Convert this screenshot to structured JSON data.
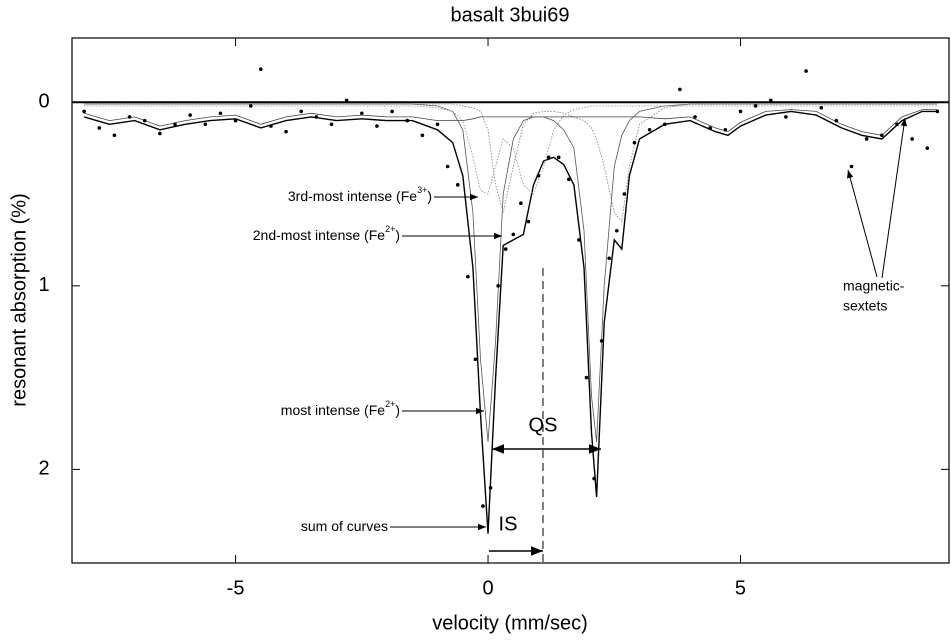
{
  "chart_data": {
    "type": "line",
    "title": "basalt 3bui69",
    "x_label": "velocity (mm/sec)",
    "y_label": "resonant absorption (%)",
    "xlim": [
      -8.24,
      9.13
    ],
    "ylim": [
      2.51,
      -0.35
    ],
    "xticks": [
      -5,
      0,
      5
    ],
    "yticks": [
      0,
      1,
      2
    ],
    "baseline": 0,
    "x": [
      -8,
      -7.5,
      -7,
      -6.5,
      -6,
      -5.5,
      -5,
      -4.5,
      -4,
      -3.5,
      -3,
      -2.5,
      -2,
      -1.5,
      -1,
      -0.7,
      -0.5,
      -0.3,
      -0.15,
      0,
      0.15,
      0.3,
      0.5,
      0.7,
      0.9,
      1.1,
      1.3,
      1.5,
      1.7,
      1.9,
      2.05,
      2.15,
      2.3,
      2.5,
      2.65,
      2.8,
      3,
      3.5,
      4,
      4.5,
      4.75,
      5,
      5.5,
      6,
      6.5,
      7,
      7.4,
      7.8,
      8.2,
      8.6,
      8.9
    ],
    "series": [
      {
        "color": "#000000",
        "style": "solid",
        "width": 1.4,
        "values": [
          0.08,
          0.12,
          0.1,
          0.15,
          0.12,
          0.1,
          0.09,
          0.14,
          0.1,
          0.08,
          0.1,
          0.09,
          0.1,
          0.1,
          0.15,
          0.22,
          0.4,
          0.9,
          1.7,
          2.35,
          1.5,
          0.78,
          0.75,
          0.72,
          0.45,
          0.32,
          0.3,
          0.34,
          0.45,
          0.9,
          1.8,
          2.15,
          1.2,
          0.75,
          0.8,
          0.4,
          0.2,
          0.12,
          0.1,
          0.16,
          0.18,
          0.13,
          0.07,
          0.05,
          0.07,
          0.14,
          0.18,
          0.2,
          0.1,
          0.05,
          0.05
        ]
      },
      {
        "color": "#555555",
        "style": "solid",
        "width": 0.8,
        "values": [
          0.01,
          0.01,
          0.01,
          0.01,
          0.01,
          0.01,
          0.01,
          0.01,
          0.01,
          0.01,
          0.01,
          0.01,
          0.01,
          0.01,
          0.02,
          0.05,
          0.15,
          0.6,
          1.4,
          1.85,
          1.3,
          0.5,
          0.2,
          0.1,
          0.08,
          0.08,
          0.1,
          0.15,
          0.25,
          0.7,
          1.6,
          1.85,
          1.0,
          0.35,
          0.18,
          0.1,
          0.05,
          0.02,
          0.01,
          0.01,
          0.01,
          0.01,
          0.01,
          0.01,
          0.01,
          0.01,
          0.01,
          0.01,
          0.01,
          0.01,
          0.01
        ]
      },
      {
        "color": "#888888",
        "style": "dotted",
        "width": 0.9,
        "values": [
          0.01,
          0.01,
          0.01,
          0.01,
          0.01,
          0.01,
          0.01,
          0.01,
          0.01,
          0.01,
          0.01,
          0.01,
          0.01,
          0.01,
          0.01,
          0.01,
          0.02,
          0.03,
          0.05,
          0.15,
          0.45,
          0.6,
          0.35,
          0.12,
          0.06,
          0.05,
          0.05,
          0.06,
          0.08,
          0.1,
          0.14,
          0.2,
          0.35,
          0.6,
          0.65,
          0.35,
          0.12,
          0.03,
          0.01,
          0.01,
          0.01,
          0.01,
          0.01,
          0.01,
          0.01,
          0.01,
          0.01,
          0.01,
          0.01,
          0.01,
          0.01
        ]
      },
      {
        "color": "#999999",
        "style": "dotted",
        "width": 0.9,
        "values": [
          0.02,
          0.02,
          0.02,
          0.02,
          0.02,
          0.02,
          0.02,
          0.02,
          0.02,
          0.02,
          0.02,
          0.02,
          0.02,
          0.02,
          0.03,
          0.05,
          0.1,
          0.3,
          0.48,
          0.5,
          0.35,
          0.2,
          0.25,
          0.45,
          0.5,
          0.35,
          0.15,
          0.07,
          0.04,
          0.03,
          0.02,
          0.02,
          0.02,
          0.02,
          0.02,
          0.02,
          0.02,
          0.02,
          0.02,
          0.02,
          0.02,
          0.02,
          0.02,
          0.02,
          0.02,
          0.02,
          0.02,
          0.02,
          0.02,
          0.02,
          0.02
        ]
      },
      {
        "color": "#444444",
        "style": "solid",
        "width": 0.8,
        "values": [
          0.06,
          0.1,
          0.08,
          0.13,
          0.1,
          0.08,
          0.07,
          0.12,
          0.08,
          0.06,
          0.08,
          0.07,
          0.08,
          0.08,
          0.1,
          0.1,
          0.1,
          0.09,
          0.08,
          0.08,
          0.08,
          0.08,
          0.08,
          0.08,
          0.08,
          0.08,
          0.08,
          0.08,
          0.08,
          0.08,
          0.08,
          0.08,
          0.08,
          0.08,
          0.08,
          0.08,
          0.08,
          0.09,
          0.08,
          0.14,
          0.16,
          0.11,
          0.05,
          0.04,
          0.05,
          0.12,
          0.16,
          0.18,
          0.08,
          0.04,
          0.04
        ]
      }
    ],
    "points": {
      "color": "#000000",
      "x": [
        -8.0,
        -7.7,
        -7.4,
        -7.1,
        -6.8,
        -6.5,
        -6.2,
        -5.9,
        -5.6,
        -5.3,
        -5.0,
        -4.7,
        -4.5,
        -4.3,
        -4.0,
        -3.7,
        -3.4,
        -3.1,
        -2.8,
        -2.5,
        -2.2,
        -1.9,
        -1.6,
        -1.3,
        -1.0,
        -0.8,
        -0.6,
        -0.4,
        -0.25,
        -0.1,
        0.05,
        0.2,
        0.35,
        0.5,
        0.65,
        0.8,
        1.0,
        1.2,
        1.4,
        1.6,
        1.8,
        1.95,
        2.1,
        2.25,
        2.4,
        2.55,
        2.7,
        2.9,
        3.2,
        3.5,
        3.8,
        4.1,
        4.4,
        4.7,
        5.0,
        5.3,
        5.6,
        5.9,
        6.3,
        6.6,
        6.9,
        7.2,
        7.5,
        7.8,
        8.1,
        8.4,
        8.7,
        8.9
      ],
      "y": [
        0.05,
        0.14,
        0.18,
        0.08,
        0.1,
        0.17,
        0.12,
        0.07,
        0.12,
        0.06,
        0.1,
        0.02,
        -0.18,
        0.13,
        0.16,
        0.05,
        0.08,
        0.12,
        -0.01,
        0.06,
        0.13,
        0.05,
        0.1,
        0.18,
        0.12,
        0.35,
        0.45,
        0.95,
        1.4,
        2.2,
        2.1,
        1.0,
        0.8,
        0.72,
        0.55,
        0.65,
        0.4,
        0.3,
        0.3,
        0.42,
        0.75,
        1.5,
        2.05,
        1.3,
        0.85,
        0.7,
        0.5,
        0.22,
        0.15,
        0.12,
        -0.07,
        0.08,
        0.14,
        0.15,
        0.05,
        0.02,
        -0.01,
        0.08,
        -0.17,
        0.03,
        0.1,
        0.35,
        0.2,
        0.18,
        0.12,
        0.2,
        0.25,
        0.05
      ]
    },
    "annotations": [
      {
        "text": "3rd-most intense (Fe",
        "sup": "3+",
        "tail": ")"
      },
      {
        "text": "2nd-most intense (Fe",
        "sup": "2+",
        "tail": ")"
      },
      {
        "text": "most intense (Fe",
        "sup": "2+",
        "tail": ")"
      },
      {
        "text": "sum of curves"
      }
    ],
    "sextets_label": [
      "magnetic-",
      "sextets"
    ],
    "qs_label": "QS",
    "is_label": "IS"
  }
}
